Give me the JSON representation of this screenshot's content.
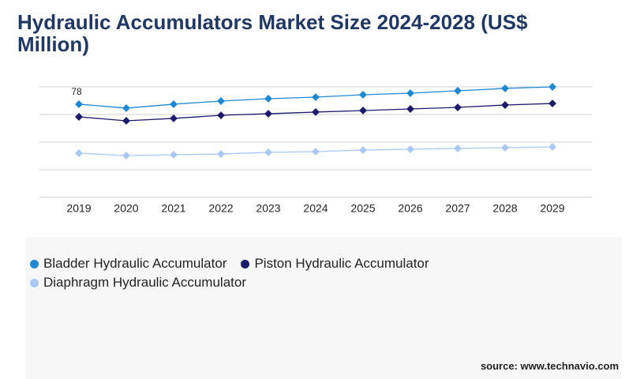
{
  "chart_data": {
    "type": "line",
    "title": "Hydraulic Accumulators Market Size 2024-2028 (US$ Million)",
    "source": "source: www.technavio.com",
    "categories": [
      "2019",
      "2020",
      "2021",
      "2022",
      "2023",
      "2024",
      "2025",
      "2026",
      "2027",
      "2028",
      "2029"
    ],
    "series": [
      {
        "name": "Bladder Hydraulic Accumulator",
        "color": "#1e88d2",
        "values": [
          78,
          74.7,
          78,
          80.6,
          82.6,
          83.9,
          85.9,
          87.2,
          89.2,
          91.2,
          92.5
        ]
      },
      {
        "name": "Piston Hydraulic Accumulator",
        "color": "#1c1a6b",
        "values": [
          67.4,
          64.1,
          66.1,
          68.7,
          70.0,
          71.4,
          72.7,
          74.0,
          75.3,
          77.3,
          78.6
        ]
      },
      {
        "name": "Diaphragm Hydraulic Accumulator",
        "color": "#a9c9f2",
        "values": [
          37.0,
          35.0,
          35.7,
          36.3,
          37.7,
          38.3,
          39.6,
          40.3,
          41.0,
          41.6,
          42.3
        ]
      }
    ],
    "labeled_point": [
      0,
      0
    ],
    "ylim": [
      0,
      92.5
    ],
    "yticks": [
      0,
      23.125,
      46.25,
      69.375,
      92.5
    ],
    "grid": true
  }
}
